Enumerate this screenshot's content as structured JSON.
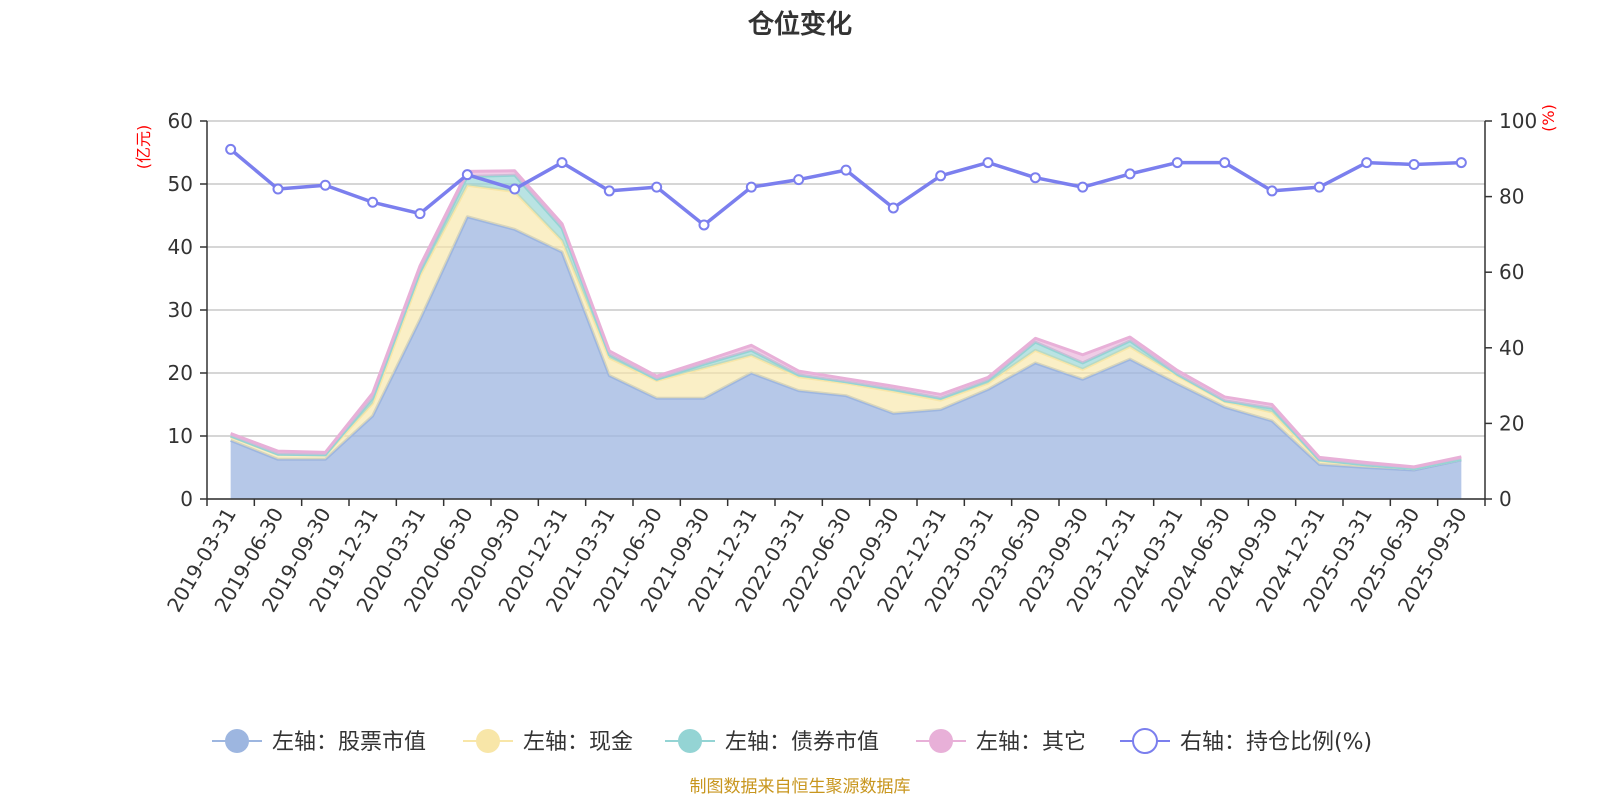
{
  "chart_data": {
    "type": "area",
    "title": "仓位变化",
    "left_axis_unit": "(亿元)",
    "right_axis_unit": "(%)",
    "left_ylim": [
      0,
      60
    ],
    "left_ticks": [
      0,
      10,
      20,
      30,
      40,
      50,
      60
    ],
    "right_ylim": [
      0,
      100
    ],
    "right_ticks": [
      0,
      20,
      40,
      60,
      80,
      100
    ],
    "categories": [
      "2019-03-31",
      "2019-06-30",
      "2019-09-30",
      "2019-12-31",
      "2020-03-31",
      "2020-06-30",
      "2020-09-30",
      "2020-12-31",
      "2021-03-31",
      "2021-06-30",
      "2021-09-30",
      "2021-12-31",
      "2022-03-31",
      "2022-06-30",
      "2022-09-30",
      "2022-12-31",
      "2023-03-31",
      "2023-06-30",
      "2023-09-30",
      "2023-12-31",
      "2024-03-31",
      "2024-06-30",
      "2024-09-30",
      "2024-12-31",
      "2025-03-31",
      "2025-06-30",
      "2025-09-30"
    ],
    "series": [
      {
        "name": "左轴：股票市值",
        "axis": "left",
        "stack": true,
        "color": "#9db6e0",
        "values": [
          9.3,
          6.3,
          6.3,
          13.2,
          28.5,
          44.8,
          42.8,
          39.2,
          19.6,
          16.0,
          16.0,
          20.0,
          17.2,
          16.4,
          13.6,
          14.2,
          17.4,
          21.6,
          19.0,
          22.2,
          18.3,
          14.6,
          12.4,
          5.5,
          5.0,
          4.6,
          6.2
        ]
      },
      {
        "name": "左轴：现金",
        "axis": "left",
        "stack": true,
        "color": "#f8e6a8",
        "values": [
          0.6,
          0.8,
          0.7,
          2.0,
          7.0,
          5.0,
          6.0,
          1.8,
          2.8,
          2.8,
          4.8,
          2.8,
          2.2,
          2.0,
          3.5,
          1.5,
          1.0,
          2.0,
          1.6,
          2.0,
          1.3,
          0.9,
          1.4,
          0.6,
          0.4,
          0.2,
          0.1
        ]
      },
      {
        "name": "左轴：债券市值",
        "axis": "left",
        "stack": true,
        "color": "#94d4d4",
        "values": [
          0.1,
          0.0,
          0.0,
          0.8,
          0.6,
          1.4,
          2.6,
          2.0,
          0.5,
          0.2,
          0.6,
          0.8,
          0.3,
          0.2,
          0.3,
          0.3,
          0.4,
          1.3,
          1.0,
          0.9,
          0.2,
          0.1,
          0.6,
          0.1,
          0.0,
          0.0,
          0.0
        ]
      },
      {
        "name": "左轴：其它",
        "axis": "left",
        "stack": true,
        "color": "#e8b0d8",
        "values": [
          0.4,
          0.5,
          0.4,
          0.8,
          0.9,
          0.8,
          0.7,
          0.7,
          0.6,
          0.5,
          0.5,
          0.8,
          0.6,
          0.5,
          0.5,
          0.6,
          0.5,
          0.6,
          1.3,
          0.6,
          0.6,
          0.6,
          0.6,
          0.4,
          0.4,
          0.3,
          0.4
        ]
      },
      {
        "name": "右轴：持仓比例(%)",
        "axis": "right",
        "stack": false,
        "color": "#7b7fee",
        "values": [
          92.5,
          82.0,
          83.0,
          78.5,
          75.5,
          85.8,
          82.0,
          89.0,
          81.5,
          82.5,
          72.5,
          82.5,
          84.5,
          87.0,
          77.0,
          85.5,
          89.0,
          85.0,
          82.5,
          86.0,
          89.0,
          89.0,
          81.5,
          82.5,
          89.0,
          88.5,
          89.0
        ]
      }
    ],
    "legend_position": "bottom",
    "grid": true
  },
  "source_text": "制图数据来自恒生聚源数据库"
}
